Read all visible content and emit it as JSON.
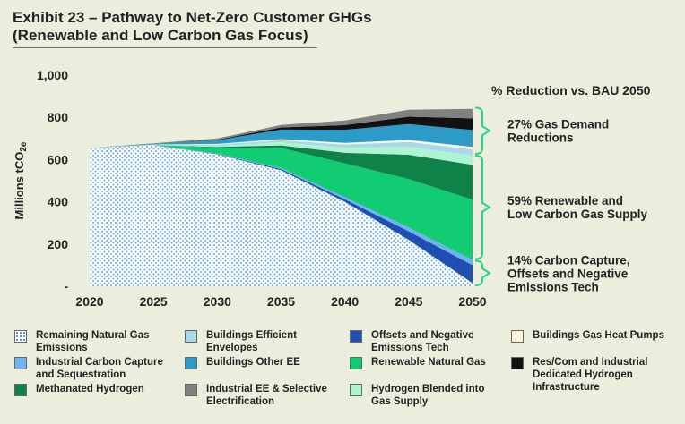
{
  "title_line1": "Exhibit 23 – Pathway to Net-Zero Customer GHGs",
  "title_line2": "(Renewable and Low Carbon Gas Focus)",
  "chart_data": {
    "type": "area",
    "stacked": true,
    "ylabel": "Millions tCO2e",
    "ylim": [
      0,
      1000
    ],
    "yticks": [
      {
        "value": 0,
        "label": "-"
      },
      {
        "value": 200,
        "label": "200"
      },
      {
        "value": 400,
        "label": "400"
      },
      {
        "value": 600,
        "label": "600"
      },
      {
        "value": 800,
        "label": "800"
      },
      {
        "value": 1000,
        "label": "1,000"
      }
    ],
    "x": [
      2020,
      2025,
      2030,
      2035,
      2040,
      2045,
      2050
    ],
    "xticks": [
      "2020",
      "2025",
      "2030",
      "2035",
      "2040",
      "2045",
      "2050"
    ],
    "grid": false,
    "legend_position": "bottom",
    "series": [
      {
        "name": "Remaining Natural Gas Emissions",
        "color": "#bcd4ea",
        "pattern": "dots",
        "values": [
          655,
          668,
          625,
          550,
          400,
          220,
          15
        ]
      },
      {
        "name": "Offsets and Negative Emissions Tech",
        "color": "#1f4fb0",
        "values": [
          0,
          0,
          2,
          5,
          12,
          40,
          85
        ]
      },
      {
        "name": "Industrial Carbon Capture and Sequestration",
        "color": "#6fb3f2",
        "values": [
          0,
          0,
          2,
          5,
          10,
          18,
          25
        ]
      },
      {
        "name": "Renewable Natural Gas",
        "color": "#12cc73",
        "values": [
          0,
          0,
          28,
          95,
          160,
          230,
          285
        ]
      },
      {
        "name": "Methanated Hydrogen",
        "color": "#0e8248",
        "values": [
          0,
          0,
          3,
          12,
          50,
          115,
          165
        ]
      },
      {
        "name": "Hydrogen Blended into Gas Supply",
        "color": "#aef3d2",
        "values": [
          0,
          0,
          5,
          15,
          25,
          38,
          45
        ]
      },
      {
        "name": "Buildings Efficient Envelopes",
        "color": "#a8d8ea",
        "values": [
          0,
          2,
          6,
          10,
          14,
          22,
          28
        ]
      },
      {
        "name": "Buildings Gas Heat Pumps",
        "color": "#fff6dc",
        "values": [
          0,
          1,
          3,
          5,
          8,
          10,
          12
        ]
      },
      {
        "name": "Buildings Other EE",
        "color": "#2d9bc8",
        "values": [
          0,
          4,
          18,
          45,
          62,
          75,
          80
        ]
      },
      {
        "name": "Res/Com and Industrial Dedicated Hydrogen Infrastructure",
        "color": "#111111",
        "values": [
          0,
          0,
          2,
          10,
          22,
          35,
          55
        ]
      },
      {
        "name": "Industrial EE & Selective Electrification",
        "color": "#808080",
        "values": [
          0,
          2,
          6,
          12,
          22,
          33,
          45
        ]
      }
    ],
    "annotations": [
      {
        "label": "% Reduction vs. BAU 2050",
        "lines": [
          "% Reduction vs. BAU 2050"
        ]
      },
      {
        "label": "27% Gas Demand Reductions",
        "lines": [
          "27% Gas Demand",
          "Reductions"
        ],
        "range": [
          623,
          850
        ]
      },
      {
        "label": "59% Renewable and Low Carbon Gas Supply",
        "lines": [
          "59% Renewable and",
          "Low Carbon Gas Supply"
        ],
        "range": [
          125,
          623
        ]
      },
      {
        "label": "14% Carbon Capture, Offsets and Negative Emissions Tech",
        "lines": [
          "14% Carbon Capture,",
          "Offsets and Negative",
          "Emissions Tech"
        ],
        "range": [
          0,
          125
        ]
      }
    ],
    "bracket_color": "#23d882"
  },
  "legend": [
    {
      "label": "Remaining Natural Gas\nEmissions",
      "color": "#bcd4ea",
      "pattern": "dots"
    },
    {
      "label": "Buildings Efficient\nEnvelopes",
      "color": "#a8d8ea"
    },
    {
      "label": "Offsets and Negative\nEmissions Tech",
      "color": "#1f4fb0"
    },
    {
      "label": "Buildings Gas Heat Pumps",
      "color": "#fff6dc"
    },
    {
      "label": "Industrial Carbon Capture\nand Sequestration",
      "color": "#6fb3f2"
    },
    {
      "label": "Buildings Other EE",
      "color": "#2d9bc8"
    },
    {
      "label": "Renewable Natural Gas",
      "color": "#12cc73"
    },
    {
      "label": "Res/Com and Industrial\nDedicated Hydrogen\nInfrastructure",
      "color": "#111111"
    },
    {
      "label": "Methanated Hydrogen",
      "color": "#0e8248"
    },
    {
      "label": "Industrial EE & Selective\nElectrification",
      "color": "#808080"
    },
    {
      "label": "Hydrogen Blended into\nGas Supply",
      "color": "#aef3d2"
    }
  ]
}
